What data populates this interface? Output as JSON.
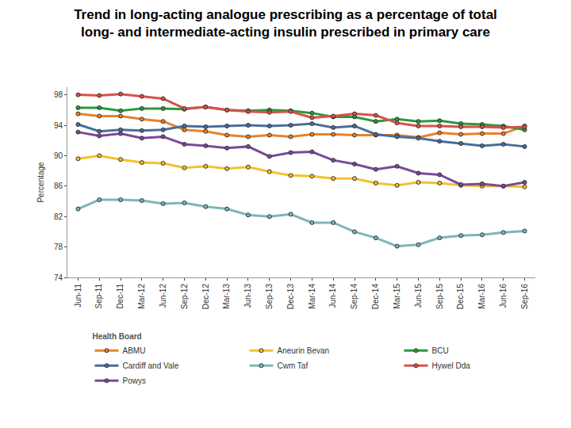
{
  "chart_data": {
    "type": "line",
    "title": "Trend in long-acting analogue prescribing as a percentage of total\nlong- and intermediate-acting insulin prescribed in primary care",
    "y_label": "Percentage",
    "legend_title": "Health Board",
    "legend": "bottom",
    "grid": false,
    "marker": "circle",
    "categories": [
      "Jun-11",
      "Sep-11",
      "Dec-11",
      "Mar-12",
      "Jun-12",
      "Sep-12",
      "Dec-12",
      "Mar-13",
      "Jun-13",
      "Sep-13",
      "Dec-13",
      "Mar-14",
      "Jun-14",
      "Sep-14",
      "Dec-14",
      "Mar-15",
      "Jun-15",
      "Sep-15",
      "Dec-15",
      "Mar-16",
      "Jun-16",
      "Sep-16"
    ],
    "ylim": [
      74,
      99
    ],
    "yticks": [
      74,
      78,
      82,
      86,
      90,
      94,
      98
    ],
    "series": [
      {
        "name": "ABMU",
        "color": "#e8822a",
        "values": [
          95.5,
          95.2,
          95.2,
          94.8,
          94.5,
          93.4,
          93.2,
          92.7,
          92.5,
          92.7,
          92.5,
          92.8,
          92.8,
          92.7,
          92.7,
          92.7,
          92.4,
          93.0,
          92.8,
          92.9,
          92.9,
          93.9
        ]
      },
      {
        "name": "Aneurin Bevan",
        "color": "#f2c12e",
        "values": [
          89.6,
          90.0,
          89.5,
          89.1,
          89.0,
          88.4,
          88.6,
          88.3,
          88.5,
          87.9,
          87.4,
          87.3,
          87.0,
          87.0,
          86.4,
          86.1,
          86.5,
          86.4,
          86.1,
          86.0,
          86.0,
          85.9
        ]
      },
      {
        "name": "BCU",
        "color": "#2a9a3a",
        "values": [
          96.3,
          96.3,
          95.9,
          96.2,
          96.2,
          96.1,
          96.4,
          96.0,
          95.9,
          96.0,
          95.9,
          95.6,
          95.1,
          95.1,
          94.5,
          94.8,
          94.5,
          94.6,
          94.2,
          94.1,
          93.9,
          93.4
        ]
      },
      {
        "name": "Cardiff and Vale",
        "color": "#4a6f9a",
        "values": [
          94.1,
          93.2,
          93.4,
          93.3,
          93.4,
          93.9,
          93.8,
          93.9,
          94.0,
          93.9,
          94.0,
          94.2,
          93.7,
          93.9,
          92.8,
          92.5,
          92.3,
          91.9,
          91.6,
          91.3,
          91.5,
          91.2
        ]
      },
      {
        "name": "Cwm Taf",
        "color": "#7fb6b6",
        "values": [
          83.0,
          84.2,
          84.2,
          84.1,
          83.7,
          83.8,
          83.3,
          83.0,
          82.2,
          82.0,
          82.3,
          81.2,
          81.2,
          80.0,
          79.2,
          78.1,
          78.3,
          79.2,
          79.5,
          79.6,
          79.9,
          80.1
        ]
      },
      {
        "name": "Hywel Dda",
        "color": "#d9504a",
        "values": [
          98.0,
          97.9,
          98.1,
          97.8,
          97.5,
          96.2,
          96.4,
          96.0,
          95.8,
          95.7,
          95.8,
          95.0,
          95.2,
          95.5,
          95.3,
          94.3,
          93.9,
          93.9,
          93.8,
          93.8,
          93.7,
          93.8
        ]
      },
      {
        "name": "Powys",
        "color": "#7b4a9a",
        "values": [
          93.1,
          92.6,
          92.9,
          92.3,
          92.5,
          91.5,
          91.3,
          91.0,
          91.2,
          89.9,
          90.4,
          90.5,
          89.4,
          88.9,
          88.2,
          88.6,
          87.7,
          87.5,
          86.2,
          86.3,
          86.0,
          86.5
        ]
      }
    ]
  }
}
